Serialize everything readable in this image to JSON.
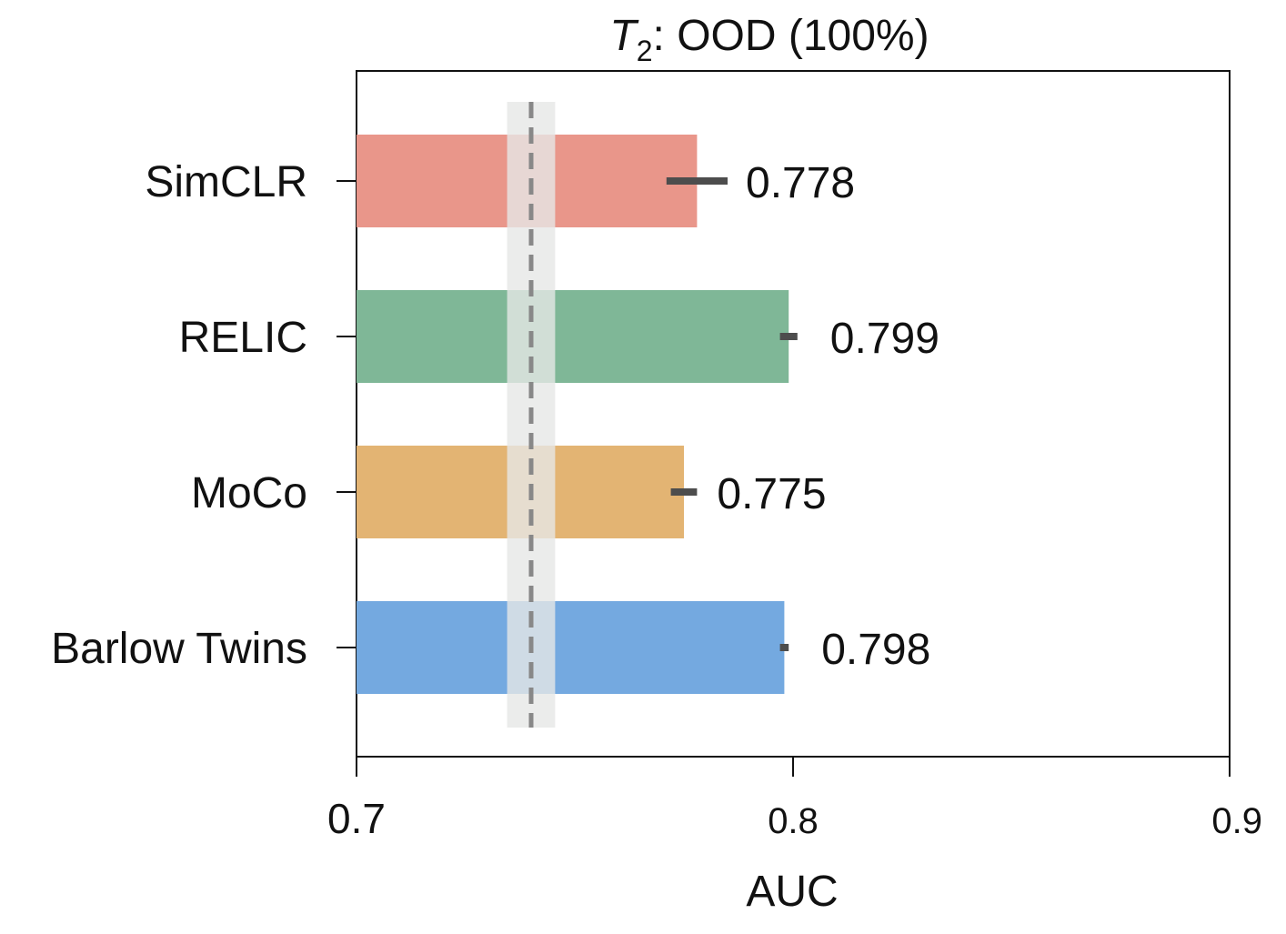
{
  "chart_data": {
    "type": "bar",
    "orientation": "horizontal",
    "title_var": "T",
    "title_sub": "2",
    "title_rest": ": OOD (100%)",
    "xlabel": "AUC",
    "ylabel": "",
    "xlim": [
      0.7,
      0.9
    ],
    "x_ticks": [
      {
        "value": 0.7,
        "label": "0.7"
      },
      {
        "value": 0.8,
        "label": "0.8"
      },
      {
        "value": 0.9,
        "label": "0.9"
      }
    ],
    "categories": [
      "SimCLR",
      "RELIC",
      "MoCo",
      "Barlow Twins"
    ],
    "values": [
      0.778,
      0.799,
      0.775,
      0.798
    ],
    "value_labels": [
      "0.778",
      "0.799",
      "0.775",
      "0.798"
    ],
    "errors": [
      0.007,
      0.002,
      0.003,
      0.001
    ],
    "colors": [
      "#e9968a",
      "#7fb797",
      "#e3b473",
      "#74a9e0"
    ],
    "reference": {
      "value": 0.74,
      "band": [
        0.7345,
        0.7455
      ],
      "line_color": "#888888",
      "band_color": "#e6e7e6"
    },
    "error_color": "#4d4d4d",
    "grid": false,
    "legend": "none"
  }
}
